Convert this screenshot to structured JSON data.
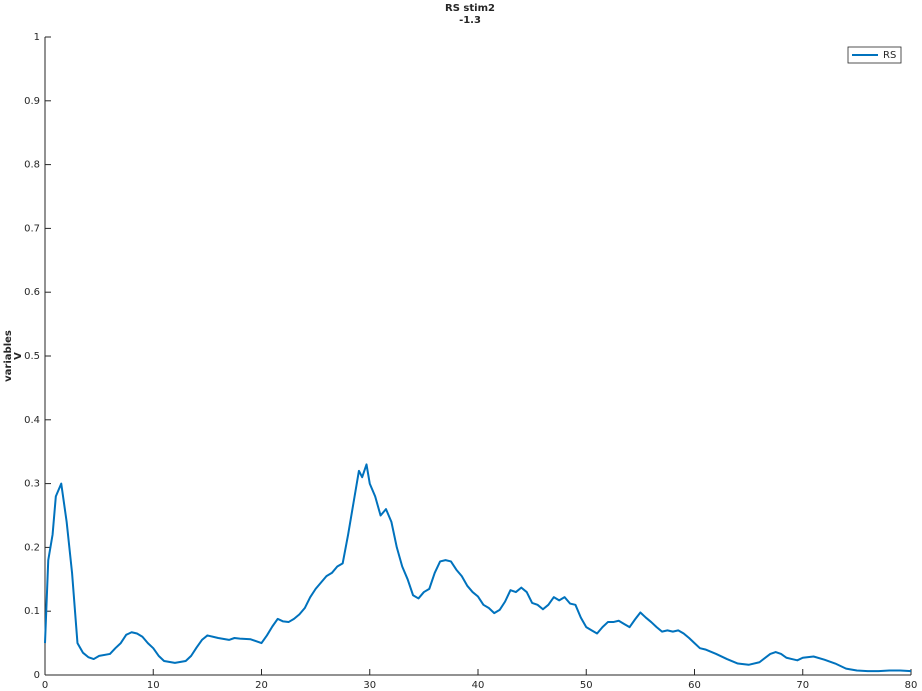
{
  "chart_data": {
    "type": "line",
    "title": "RS stim2",
    "subtitle": "-1.3",
    "ylabel": [
      "variables",
      "V"
    ],
    "x": [
      0,
      0.3,
      0.7,
      1.0,
      1.5,
      2.0,
      2.5,
      3.0,
      3.5,
      4.0,
      4.5,
      5.0,
      6.0,
      6.5,
      7.0,
      7.5,
      8.0,
      8.5,
      9.0,
      9.5,
      10.0,
      10.5,
      11.0,
      12.0,
      13.0,
      13.5,
      14.0,
      14.5,
      15.0,
      16.0,
      17.0,
      17.5,
      18.0,
      19.0,
      20.0,
      20.5,
      21.0,
      21.5,
      22.0,
      22.5,
      23.0,
      23.5,
      24.0,
      24.5,
      25.0,
      25.5,
      26.0,
      26.5,
      27.0,
      27.5,
      28.0,
      28.5,
      29.0,
      29.3,
      29.7,
      30.0,
      30.5,
      31.0,
      31.5,
      32.0,
      32.5,
      33.0,
      33.5,
      34.0,
      34.5,
      35.0,
      35.5,
      36.0,
      36.5,
      37.0,
      37.5,
      38.0,
      38.5,
      39.0,
      39.5,
      40.0,
      40.5,
      41.0,
      41.5,
      42.0,
      42.5,
      43.0,
      43.5,
      44.0,
      44.5,
      45.0,
      45.5,
      46.0,
      46.5,
      47.0,
      47.5,
      48.0,
      48.5,
      49.0,
      49.5,
      50.0,
      50.5,
      51.0,
      51.5,
      52.0,
      52.5,
      53.0,
      53.5,
      54.0,
      54.5,
      55.0,
      55.5,
      56.0,
      56.5,
      57.0,
      57.5,
      58.0,
      58.5,
      59.0,
      59.5,
      60.0,
      60.5,
      61.0,
      62.0,
      63.0,
      64.0,
      65.0,
      66.0,
      67.0,
      67.5,
      68.0,
      68.5,
      69.0,
      69.5,
      70.0,
      71.0,
      72.0,
      73.0,
      74.0,
      75.0,
      76.0,
      77.0,
      78.0,
      79.0,
      80.0
    ],
    "series": [
      {
        "name": "RS",
        "color": "#0072bd",
        "values": [
          0.05,
          0.18,
          0.22,
          0.28,
          0.3,
          0.24,
          0.16,
          0.05,
          0.035,
          0.028,
          0.025,
          0.03,
          0.033,
          0.042,
          0.05,
          0.063,
          0.067,
          0.065,
          0.06,
          0.05,
          0.042,
          0.03,
          0.022,
          0.019,
          0.022,
          0.03,
          0.043,
          0.055,
          0.062,
          0.058,
          0.055,
          0.058,
          0.057,
          0.056,
          0.05,
          0.062,
          0.076,
          0.088,
          0.084,
          0.083,
          0.088,
          0.095,
          0.105,
          0.122,
          0.135,
          0.145,
          0.155,
          0.16,
          0.17,
          0.175,
          0.22,
          0.27,
          0.32,
          0.31,
          0.33,
          0.3,
          0.28,
          0.25,
          0.26,
          0.24,
          0.2,
          0.17,
          0.15,
          0.125,
          0.12,
          0.13,
          0.135,
          0.16,
          0.178,
          0.18,
          0.178,
          0.165,
          0.155,
          0.14,
          0.13,
          0.123,
          0.11,
          0.105,
          0.097,
          0.102,
          0.115,
          0.133,
          0.13,
          0.137,
          0.13,
          0.113,
          0.11,
          0.103,
          0.11,
          0.122,
          0.117,
          0.122,
          0.112,
          0.11,
          0.09,
          0.075,
          0.07,
          0.065,
          0.075,
          0.083,
          0.083,
          0.085,
          0.08,
          0.075,
          0.087,
          0.098,
          0.09,
          0.083,
          0.075,
          0.068,
          0.07,
          0.068,
          0.07,
          0.065,
          0.058,
          0.05,
          0.042,
          0.04,
          0.033,
          0.025,
          0.018,
          0.016,
          0.02,
          0.033,
          0.036,
          0.033,
          0.027,
          0.025,
          0.023,
          0.027,
          0.029,
          0.024,
          0.018,
          0.01,
          0.007,
          0.006,
          0.006,
          0.007,
          0.007,
          0.006
        ]
      }
    ],
    "xlim": [
      0,
      80
    ],
    "xticks": [
      0,
      10,
      20,
      30,
      40,
      50,
      60,
      70,
      80
    ],
    "ylim": [
      0,
      1
    ],
    "yticks": [
      0,
      0.1,
      0.2,
      0.3,
      0.4,
      0.5,
      0.6,
      0.7,
      0.8,
      0.9,
      1
    ],
    "legend": "upper right"
  }
}
